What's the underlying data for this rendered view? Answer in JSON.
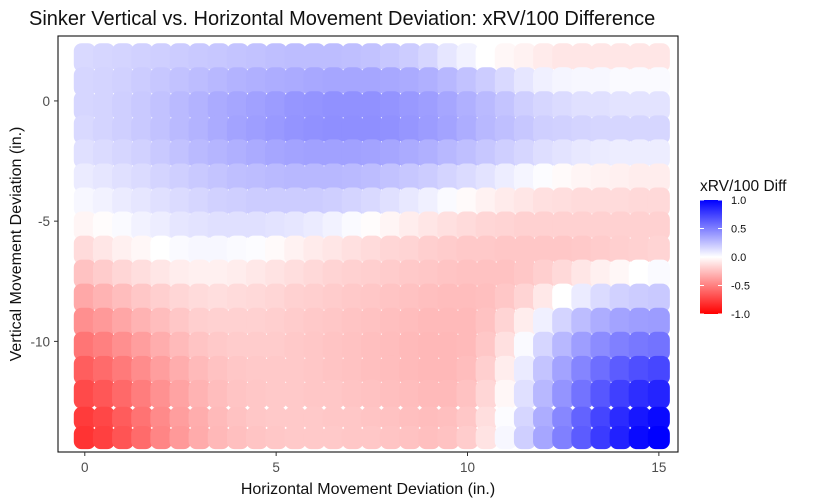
{
  "chart_data": {
    "type": "heatmap",
    "title": "Sinker Vertical vs. Horizontal Movement Deviation: xRV/100 Difference",
    "xlabel": "Horizontal Movement Deviation (in.)",
    "ylabel": "Vertical Movement Deviation (in.)",
    "xlim": [
      -0.7,
      15.5
    ],
    "ylim": [
      -14.6,
      2.7
    ],
    "x_ticks": [
      0,
      5,
      10,
      15
    ],
    "y_ticks": [
      0,
      -5,
      -10
    ],
    "x_tick_labels": [
      "0",
      "5",
      "10",
      "15"
    ],
    "y_tick_labels": [
      "0",
      "-5",
      "-10"
    ],
    "grid": false,
    "legend": {
      "title": "xRV/100 Diff",
      "position": "right",
      "breaks": [
        1.0,
        0.5,
        0.0,
        -0.5,
        -1.0
      ],
      "labels": [
        "1.0",
        "0.5",
        "0.0",
        "-0.5",
        "-1.0"
      ],
      "colors": {
        "high": "#0000ff",
        "mid": "#ffffff",
        "low": "#ff0000"
      }
    },
    "x_grid": [
      0,
      0.5,
      1,
      1.5,
      2,
      2.5,
      3,
      3.5,
      4,
      4.5,
      5,
      5.5,
      6,
      6.5,
      7,
      7.5,
      8,
      8.5,
      9,
      9.5,
      10,
      10.5,
      11,
      11.5,
      12,
      12.5,
      13,
      13.5,
      14,
      14.5,
      15
    ],
    "y_grid": [
      1.8,
      0.8,
      -0.2,
      -1.2,
      -2.2,
      -3.2,
      -4.2,
      -5.2,
      -6.2,
      -7.2,
      -8.2,
      -9.2,
      -10.2,
      -11.2,
      -12.2,
      -13.2,
      -14.0
    ],
    "z_description_rows": "rows follow y_grid order, columns follow x_grid order",
    "z": [
      [
        0.15,
        0.16,
        0.17,
        0.18,
        0.19,
        0.2,
        0.21,
        0.22,
        0.23,
        0.24,
        0.25,
        0.26,
        0.26,
        0.26,
        0.25,
        0.24,
        0.22,
        0.2,
        0.16,
        0.1,
        0.05,
        0.0,
        -0.03,
        -0.05,
        -0.08,
        -0.1,
        -0.1,
        -0.1,
        -0.1,
        -0.1,
        -0.1
      ],
      [
        0.16,
        0.17,
        0.18,
        0.2,
        0.22,
        0.24,
        0.26,
        0.28,
        0.3,
        0.31,
        0.32,
        0.33,
        0.34,
        0.35,
        0.35,
        0.35,
        0.34,
        0.33,
        0.31,
        0.28,
        0.24,
        0.2,
        0.15,
        0.1,
        0.06,
        0.04,
        0.03,
        0.03,
        0.02,
        0.02,
        0.02
      ],
      [
        0.16,
        0.17,
        0.19,
        0.21,
        0.24,
        0.27,
        0.3,
        0.33,
        0.35,
        0.37,
        0.39,
        0.41,
        0.42,
        0.43,
        0.43,
        0.43,
        0.42,
        0.4,
        0.38,
        0.35,
        0.31,
        0.27,
        0.23,
        0.19,
        0.16,
        0.14,
        0.12,
        0.12,
        0.11,
        0.11,
        0.11
      ],
      [
        0.15,
        0.17,
        0.19,
        0.21,
        0.24,
        0.27,
        0.3,
        0.33,
        0.36,
        0.38,
        0.4,
        0.42,
        0.43,
        0.44,
        0.44,
        0.44,
        0.43,
        0.41,
        0.39,
        0.36,
        0.32,
        0.28,
        0.25,
        0.22,
        0.19,
        0.18,
        0.17,
        0.16,
        0.16,
        0.16,
        0.16
      ],
      [
        0.12,
        0.14,
        0.16,
        0.18,
        0.21,
        0.24,
        0.27,
        0.29,
        0.31,
        0.33,
        0.35,
        0.36,
        0.37,
        0.37,
        0.37,
        0.36,
        0.35,
        0.33,
        0.31,
        0.28,
        0.25,
        0.22,
        0.19,
        0.16,
        0.13,
        0.11,
        0.09,
        0.08,
        0.07,
        0.07,
        0.07
      ],
      [
        0.08,
        0.1,
        0.12,
        0.14,
        0.17,
        0.19,
        0.21,
        0.23,
        0.25,
        0.26,
        0.27,
        0.28,
        0.28,
        0.28,
        0.27,
        0.26,
        0.24,
        0.22,
        0.2,
        0.17,
        0.14,
        0.11,
        0.07,
        0.04,
        0.01,
        -0.02,
        -0.04,
        -0.05,
        -0.06,
        -0.07,
        -0.07
      ],
      [
        0.03,
        0.05,
        0.08,
        0.1,
        0.12,
        0.14,
        0.16,
        0.18,
        0.19,
        0.2,
        0.2,
        0.2,
        0.2,
        0.19,
        0.17,
        0.15,
        0.12,
        0.09,
        0.06,
        0.02,
        -0.02,
        -0.05,
        -0.08,
        -0.1,
        -0.12,
        -0.13,
        -0.14,
        -0.14,
        -0.14,
        -0.15,
        -0.15
      ],
      [
        -0.04,
        -0.01,
        0.02,
        0.05,
        0.07,
        0.1,
        0.11,
        0.12,
        0.12,
        0.12,
        0.11,
        0.1,
        0.08,
        0.05,
        0.02,
        -0.01,
        -0.04,
        -0.07,
        -0.1,
        -0.12,
        -0.14,
        -0.16,
        -0.17,
        -0.18,
        -0.18,
        -0.18,
        -0.18,
        -0.18,
        -0.18,
        -0.18,
        -0.18
      ],
      [
        -0.14,
        -0.1,
        -0.06,
        -0.03,
        0.0,
        0.02,
        0.03,
        0.03,
        0.02,
        0.01,
        -0.02,
        -0.05,
        -0.08,
        -0.1,
        -0.12,
        -0.14,
        -0.16,
        -0.17,
        -0.19,
        -0.2,
        -0.21,
        -0.21,
        -0.22,
        -0.22,
        -0.22,
        -0.22,
        -0.21,
        -0.2,
        -0.19,
        -0.18,
        -0.17
      ],
      [
        -0.24,
        -0.2,
        -0.16,
        -0.13,
        -0.1,
        -0.07,
        -0.06,
        -0.06,
        -0.07,
        -0.09,
        -0.11,
        -0.13,
        -0.15,
        -0.17,
        -0.18,
        -0.19,
        -0.2,
        -0.21,
        -0.22,
        -0.23,
        -0.24,
        -0.24,
        -0.24,
        -0.22,
        -0.19,
        -0.15,
        -0.1,
        -0.06,
        -0.03,
        0.0,
        0.02
      ],
      [
        -0.34,
        -0.3,
        -0.26,
        -0.22,
        -0.19,
        -0.16,
        -0.14,
        -0.13,
        -0.14,
        -0.15,
        -0.16,
        -0.18,
        -0.19,
        -0.2,
        -0.21,
        -0.22,
        -0.23,
        -0.24,
        -0.25,
        -0.26,
        -0.26,
        -0.25,
        -0.22,
        -0.17,
        -0.09,
        0.0,
        0.08,
        0.14,
        0.18,
        0.2,
        0.21
      ],
      [
        -0.44,
        -0.4,
        -0.35,
        -0.3,
        -0.26,
        -0.22,
        -0.19,
        -0.18,
        -0.18,
        -0.18,
        -0.19,
        -0.2,
        -0.21,
        -0.22,
        -0.23,
        -0.24,
        -0.25,
        -0.26,
        -0.27,
        -0.27,
        -0.27,
        -0.24,
        -0.17,
        -0.07,
        0.06,
        0.17,
        0.26,
        0.32,
        0.36,
        0.38,
        0.39
      ],
      [
        -0.54,
        -0.5,
        -0.44,
        -0.38,
        -0.32,
        -0.27,
        -0.23,
        -0.21,
        -0.2,
        -0.2,
        -0.2,
        -0.21,
        -0.22,
        -0.23,
        -0.24,
        -0.25,
        -0.26,
        -0.27,
        -0.28,
        -0.28,
        -0.27,
        -0.22,
        -0.12,
        0.02,
        0.16,
        0.28,
        0.38,
        0.45,
        0.5,
        0.53,
        0.55
      ],
      [
        -0.63,
        -0.58,
        -0.52,
        -0.45,
        -0.38,
        -0.32,
        -0.27,
        -0.24,
        -0.22,
        -0.21,
        -0.21,
        -0.21,
        -0.22,
        -0.23,
        -0.24,
        -0.25,
        -0.26,
        -0.27,
        -0.28,
        -0.28,
        -0.26,
        -0.19,
        -0.07,
        0.08,
        0.23,
        0.36,
        0.48,
        0.57,
        0.64,
        0.69,
        0.72
      ],
      [
        -0.71,
        -0.66,
        -0.59,
        -0.51,
        -0.43,
        -0.36,
        -0.3,
        -0.26,
        -0.23,
        -0.22,
        -0.21,
        -0.21,
        -0.22,
        -0.22,
        -0.23,
        -0.24,
        -0.25,
        -0.26,
        -0.27,
        -0.27,
        -0.24,
        -0.16,
        -0.03,
        0.12,
        0.28,
        0.42,
        0.55,
        0.66,
        0.75,
        0.82,
        0.86
      ],
      [
        -0.77,
        -0.72,
        -0.64,
        -0.55,
        -0.46,
        -0.38,
        -0.32,
        -0.27,
        -0.24,
        -0.22,
        -0.21,
        -0.21,
        -0.21,
        -0.22,
        -0.22,
        -0.23,
        -0.24,
        -0.25,
        -0.26,
        -0.25,
        -0.22,
        -0.13,
        0.01,
        0.16,
        0.32,
        0.47,
        0.61,
        0.73,
        0.83,
        0.91,
        0.96
      ],
      [
        -0.8,
        -0.75,
        -0.67,
        -0.58,
        -0.48,
        -0.4,
        -0.33,
        -0.28,
        -0.25,
        -0.23,
        -0.22,
        -0.21,
        -0.21,
        -0.21,
        -0.22,
        -0.22,
        -0.23,
        -0.24,
        -0.25,
        -0.24,
        -0.2,
        -0.11,
        0.03,
        0.19,
        0.35,
        0.5,
        0.64,
        0.77,
        0.87,
        0.96,
        1.0
      ]
    ]
  }
}
